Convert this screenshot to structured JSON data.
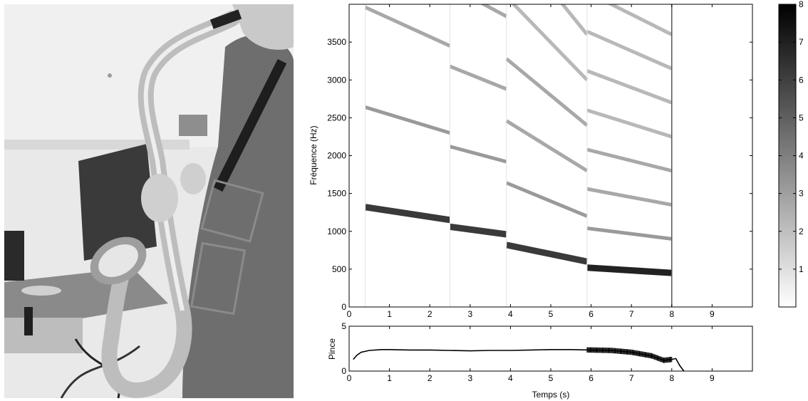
{
  "photo": {
    "subject": "saxophone-player-photo"
  },
  "chart_data": [
    {
      "type": "heatmap",
      "xlim": [
        0,
        10
      ],
      "ylim": [
        0,
        4000
      ],
      "x_ticks": [
        0,
        1,
        2,
        3,
        4,
        5,
        6,
        7,
        8,
        9
      ],
      "y_ticks": [
        0,
        500,
        1000,
        1500,
        2000,
        2500,
        3000,
        3500
      ],
      "ylabel": "Fréquence (Hz)",
      "xlabel": "",
      "colormap": "gray-reversed",
      "colorbar": {
        "min": 0,
        "max": 8,
        "ticks": [
          1,
          2,
          3,
          4,
          5,
          6,
          7,
          8
        ]
      },
      "notes": [
        {
          "t0": 0.4,
          "t1": 2.5,
          "f0_start": 1320,
          "f0_end": 1150
        },
        {
          "t0": 2.5,
          "t1": 3.9,
          "f0_start": 1060,
          "f0_end": 960
        },
        {
          "t0": 3.9,
          "t1": 5.9,
          "f0_start": 820,
          "f0_end": 600
        },
        {
          "t0": 5.9,
          "t1": 8.0,
          "f0_start": 520,
          "f0_end": 450
        }
      ],
      "harmonics_shown": 8,
      "end_time": 8.0
    },
    {
      "type": "line",
      "xlim": [
        0,
        10
      ],
      "ylim": [
        0,
        5
      ],
      "x_ticks": [
        0,
        1,
        2,
        3,
        4,
        5,
        6,
        7,
        8,
        9
      ],
      "y_ticks": [
        0,
        5
      ],
      "ylabel": "Pince",
      "xlabel": "Temps (s)",
      "x": [
        0.1,
        0.2,
        0.3,
        0.5,
        0.8,
        1.0,
        1.5,
        2.0,
        2.5,
        3.0,
        3.5,
        4.0,
        4.5,
        5.0,
        5.5,
        6.0,
        6.5,
        7.0,
        7.5,
        7.8,
        8.0,
        8.1,
        8.2,
        8.3
      ],
      "y": [
        1.3,
        1.8,
        2.1,
        2.3,
        2.4,
        2.4,
        2.35,
        2.35,
        2.3,
        2.25,
        2.3,
        2.3,
        2.35,
        2.4,
        2.4,
        2.35,
        2.3,
        2.1,
        1.7,
        1.2,
        1.3,
        1.4,
        0.6,
        0.0
      ],
      "noise_band": {
        "t0": 5.9,
        "t1": 8.0
      }
    }
  ]
}
